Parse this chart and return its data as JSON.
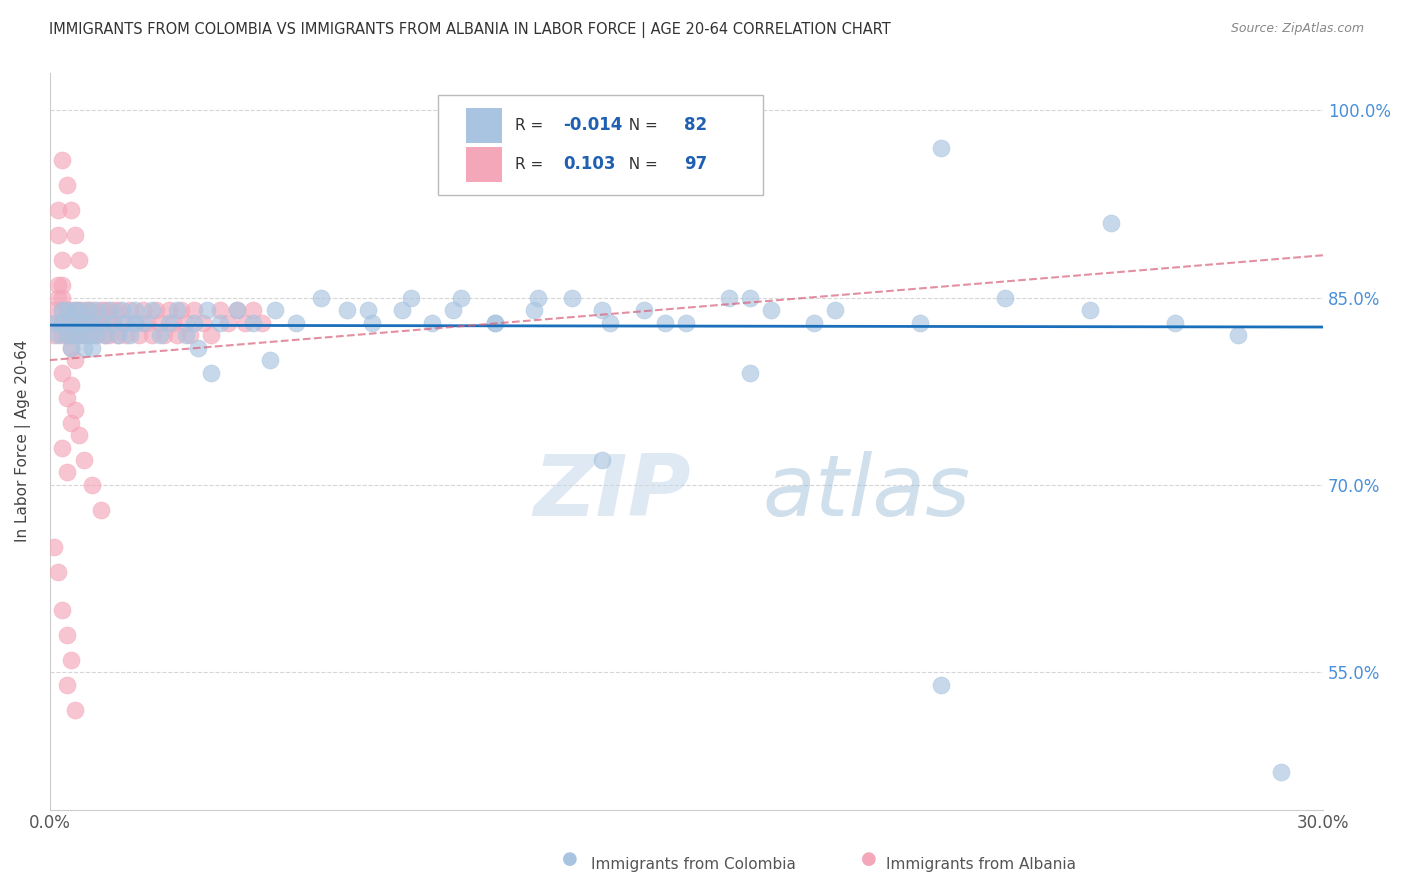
{
  "title": "IMMIGRANTS FROM COLOMBIA VS IMMIGRANTS FROM ALBANIA IN LABOR FORCE | AGE 20-64 CORRELATION CHART",
  "source": "Source: ZipAtlas.com",
  "ylabel": "In Labor Force | Age 20-64",
  "xlim": [
    0.0,
    0.3
  ],
  "ylim": [
    0.44,
    1.03
  ],
  "xtick_labels": [
    "0.0%",
    "",
    "",
    "",
    "",
    "",
    "30.0%"
  ],
  "ytick_labels": [
    "55.0%",
    "70.0%",
    "85.0%",
    "100.0%"
  ],
  "yticks": [
    0.55,
    0.7,
    0.85,
    1.0
  ],
  "colombia_R": -0.014,
  "colombia_N": 82,
  "albania_R": 0.103,
  "albania_N": 97,
  "colombia_color": "#a8c4e0",
  "albania_color": "#f4a7b9",
  "colombia_trend_color": "#1a6fba",
  "albania_trend_color": "#d9607a",
  "watermark_color": "#c8d8ea",
  "background_color": "#ffffff",
  "grid_color": "#cccccc",
  "title_color": "#333333",
  "colombia_trend_intercept": 0.828,
  "colombia_trend_slope": -0.005,
  "albania_trend_intercept": 0.8,
  "albania_trend_slope": 0.28,
  "colombia_scatter": {
    "x": [
      0.001,
      0.002,
      0.003,
      0.003,
      0.004,
      0.004,
      0.005,
      0.005,
      0.006,
      0.006,
      0.007,
      0.007,
      0.007,
      0.008,
      0.008,
      0.009,
      0.009,
      0.01,
      0.01,
      0.011,
      0.011,
      0.012,
      0.013,
      0.014,
      0.015,
      0.016,
      0.017,
      0.018,
      0.019,
      0.02,
      0.022,
      0.024,
      0.026,
      0.028,
      0.03,
      0.032,
      0.034,
      0.037,
      0.04,
      0.044,
      0.048,
      0.053,
      0.058,
      0.064,
      0.07,
      0.076,
      0.083,
      0.09,
      0.097,
      0.105,
      0.114,
      0.123,
      0.132,
      0.14,
      0.15,
      0.16,
      0.17,
      0.18,
      0.075,
      0.085,
      0.095,
      0.105,
      0.115,
      0.13,
      0.145,
      0.165,
      0.185,
      0.205,
      0.225,
      0.245,
      0.265,
      0.28,
      0.21,
      0.25,
      0.165,
      0.13,
      0.02,
      0.035,
      0.038,
      0.052,
      0.21,
      0.29
    ],
    "y": [
      0.83,
      0.82,
      0.84,
      0.83,
      0.82,
      0.84,
      0.83,
      0.81,
      0.84,
      0.82,
      0.83,
      0.82,
      0.84,
      0.83,
      0.81,
      0.84,
      0.82,
      0.83,
      0.81,
      0.84,
      0.82,
      0.83,
      0.82,
      0.84,
      0.83,
      0.82,
      0.84,
      0.83,
      0.82,
      0.84,
      0.83,
      0.84,
      0.82,
      0.83,
      0.84,
      0.82,
      0.83,
      0.84,
      0.83,
      0.84,
      0.83,
      0.84,
      0.83,
      0.85,
      0.84,
      0.83,
      0.84,
      0.83,
      0.85,
      0.83,
      0.84,
      0.85,
      0.83,
      0.84,
      0.83,
      0.85,
      0.84,
      0.83,
      0.84,
      0.85,
      0.84,
      0.83,
      0.85,
      0.84,
      0.83,
      0.85,
      0.84,
      0.83,
      0.85,
      0.84,
      0.83,
      0.82,
      0.97,
      0.91,
      0.79,
      0.72,
      0.83,
      0.81,
      0.79,
      0.8,
      0.54,
      0.47
    ]
  },
  "albania_scatter": {
    "x": [
      0.001,
      0.001,
      0.002,
      0.002,
      0.002,
      0.003,
      0.003,
      0.003,
      0.003,
      0.004,
      0.004,
      0.004,
      0.005,
      0.005,
      0.005,
      0.005,
      0.006,
      0.006,
      0.006,
      0.006,
      0.007,
      0.007,
      0.007,
      0.008,
      0.008,
      0.008,
      0.009,
      0.009,
      0.01,
      0.01,
      0.011,
      0.011,
      0.012,
      0.012,
      0.013,
      0.013,
      0.014,
      0.014,
      0.015,
      0.015,
      0.016,
      0.016,
      0.017,
      0.018,
      0.019,
      0.02,
      0.021,
      0.022,
      0.023,
      0.024,
      0.025,
      0.026,
      0.027,
      0.028,
      0.029,
      0.03,
      0.031,
      0.032,
      0.033,
      0.034,
      0.036,
      0.038,
      0.04,
      0.042,
      0.044,
      0.046,
      0.048,
      0.05,
      0.003,
      0.004,
      0.005,
      0.006,
      0.007,
      0.003,
      0.004,
      0.005,
      0.002,
      0.002,
      0.003,
      0.003,
      0.004,
      0.005,
      0.005,
      0.006,
      0.007,
      0.008,
      0.01,
      0.012,
      0.001,
      0.002,
      0.003,
      0.004,
      0.003,
      0.004,
      0.005,
      0.004,
      0.006
    ],
    "y": [
      0.84,
      0.82,
      0.86,
      0.83,
      0.85,
      0.85,
      0.83,
      0.84,
      0.82,
      0.84,
      0.83,
      0.82,
      0.84,
      0.83,
      0.82,
      0.81,
      0.84,
      0.83,
      0.82,
      0.8,
      0.84,
      0.83,
      0.82,
      0.84,
      0.83,
      0.82,
      0.84,
      0.83,
      0.82,
      0.84,
      0.83,
      0.82,
      0.84,
      0.83,
      0.82,
      0.84,
      0.83,
      0.82,
      0.84,
      0.83,
      0.82,
      0.84,
      0.83,
      0.82,
      0.84,
      0.83,
      0.82,
      0.84,
      0.83,
      0.82,
      0.84,
      0.83,
      0.82,
      0.84,
      0.83,
      0.82,
      0.84,
      0.83,
      0.82,
      0.84,
      0.83,
      0.82,
      0.84,
      0.83,
      0.84,
      0.83,
      0.84,
      0.83,
      0.96,
      0.94,
      0.92,
      0.9,
      0.88,
      0.79,
      0.77,
      0.75,
      0.92,
      0.9,
      0.88,
      0.86,
      0.84,
      0.82,
      0.78,
      0.76,
      0.74,
      0.72,
      0.7,
      0.68,
      0.65,
      0.63,
      0.73,
      0.71,
      0.6,
      0.58,
      0.56,
      0.54,
      0.52
    ]
  }
}
